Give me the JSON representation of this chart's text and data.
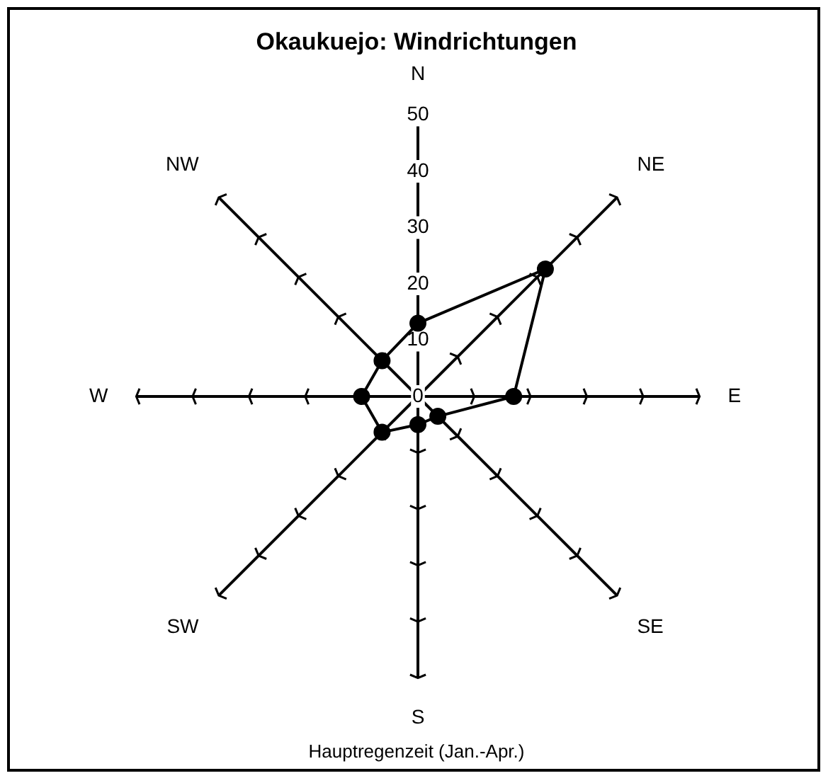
{
  "chart_data": {
    "type": "radar",
    "title": "Okaukuejo: Windrichtungen",
    "annotations": [
      "Hauptregenzeit (Jan.-Apr.)"
    ],
    "categories": [
      "N",
      "NE",
      "E",
      "SE",
      "S",
      "SW",
      "W",
      "NW"
    ],
    "series": [
      {
        "color": "#000000",
        "values": [
          13,
          32,
          17,
          5,
          5,
          9,
          10,
          9
        ]
      }
    ],
    "ylim": [
      0,
      50
    ],
    "yticks": [
      0,
      10,
      20,
      30,
      40,
      50
    ],
    "grid": true,
    "legend": false,
    "marker": "circle",
    "line_style": "solid"
  }
}
